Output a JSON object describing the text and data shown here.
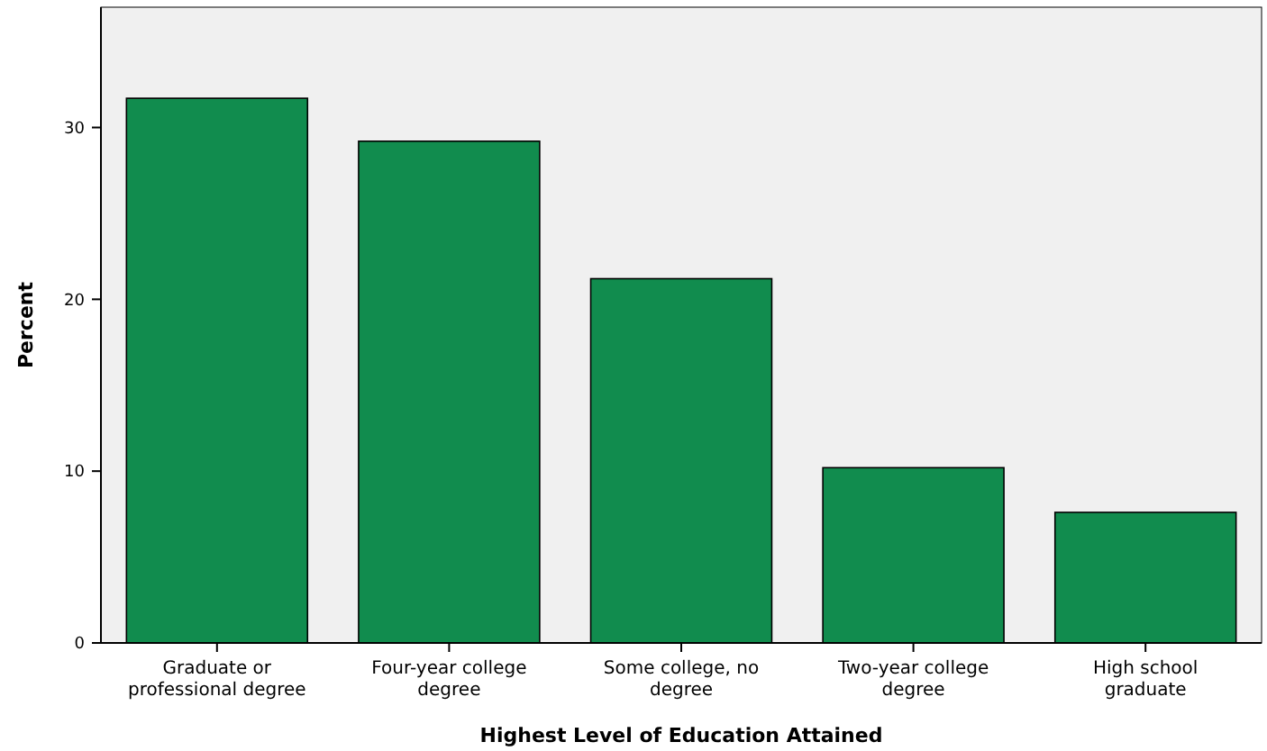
{
  "chart_data": {
    "type": "bar",
    "xlabel": "Highest Level of Education Attained",
    "ylabel": "Percent",
    "categories": [
      "Graduate or professional degree",
      "Four-year college degree",
      "Some college, no degree",
      "Two-year college degree",
      "High school graduate"
    ],
    "values": [
      31.7,
      29.2,
      21.2,
      10.2,
      7.6
    ],
    "color": "#118c4e",
    "ylim": [
      0,
      37
    ],
    "yticks": [
      0,
      10,
      20,
      30
    ],
    "grid": false
  }
}
